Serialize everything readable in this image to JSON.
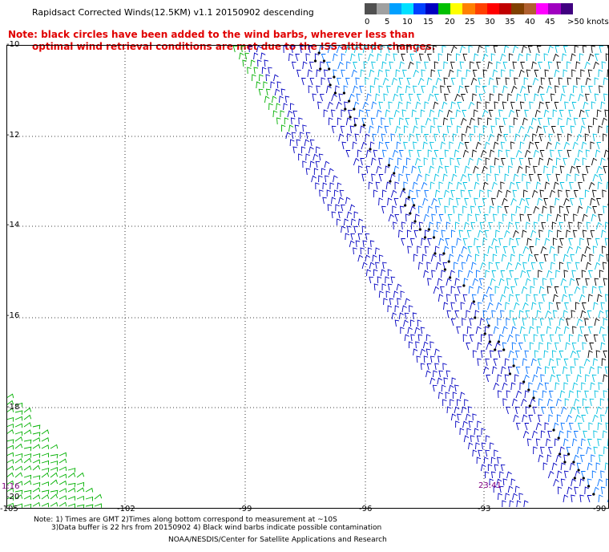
{
  "header": {
    "title": "Rapidsact Corrected Winds(12.5KM) v1.1 20150902 descending"
  },
  "notice": {
    "line1": "Note: black circles have been added to the wind barbs, wherever less than",
    "line2": "optimal wind retrieval conditions are met due to the ISS altitude changes."
  },
  "legend": {
    "colors": [
      "#505050",
      "#a0a0a0",
      "#00a0ff",
      "#00e0ff",
      "#0040ff",
      "#0000c0",
      "#00c000",
      "#ffff00",
      "#ff8000",
      "#ff4000",
      "#ff0000",
      "#c00000",
      "#804000",
      "#b06030",
      "#ff00ff",
      "#a000c0",
      "#400080"
    ],
    "labels": [
      "0",
      "5",
      "10",
      "15",
      "20",
      "25",
      "30",
      "35",
      "40",
      "45",
      ">50 knots"
    ]
  },
  "axes": {
    "lat_labels": [
      "-10",
      "-12",
      "-14",
      "-16",
      "-18",
      "-20"
    ],
    "lon_labels": [
      "-105",
      "-102",
      "-99",
      "-96",
      "-93",
      "-90"
    ]
  },
  "pass_times": [
    "1:16",
    "23:41"
  ],
  "footer": {
    "note1": "Note: 1) Times are GMT 2)Times along bottom correspond to measurement at ~10S",
    "note2": "3)Data buffer is 22 hrs from 20150902 4) Black wind barbs indicate possible contamination",
    "credit": "NOAA/NESDIS/Center for Satellite Applications and Research"
  },
  "swath_colors": {
    "green": "#00b000",
    "blue": "#0000c0",
    "mid_blue": "#0070ff",
    "light_blue": "#00c0e0",
    "black": "#000000"
  }
}
